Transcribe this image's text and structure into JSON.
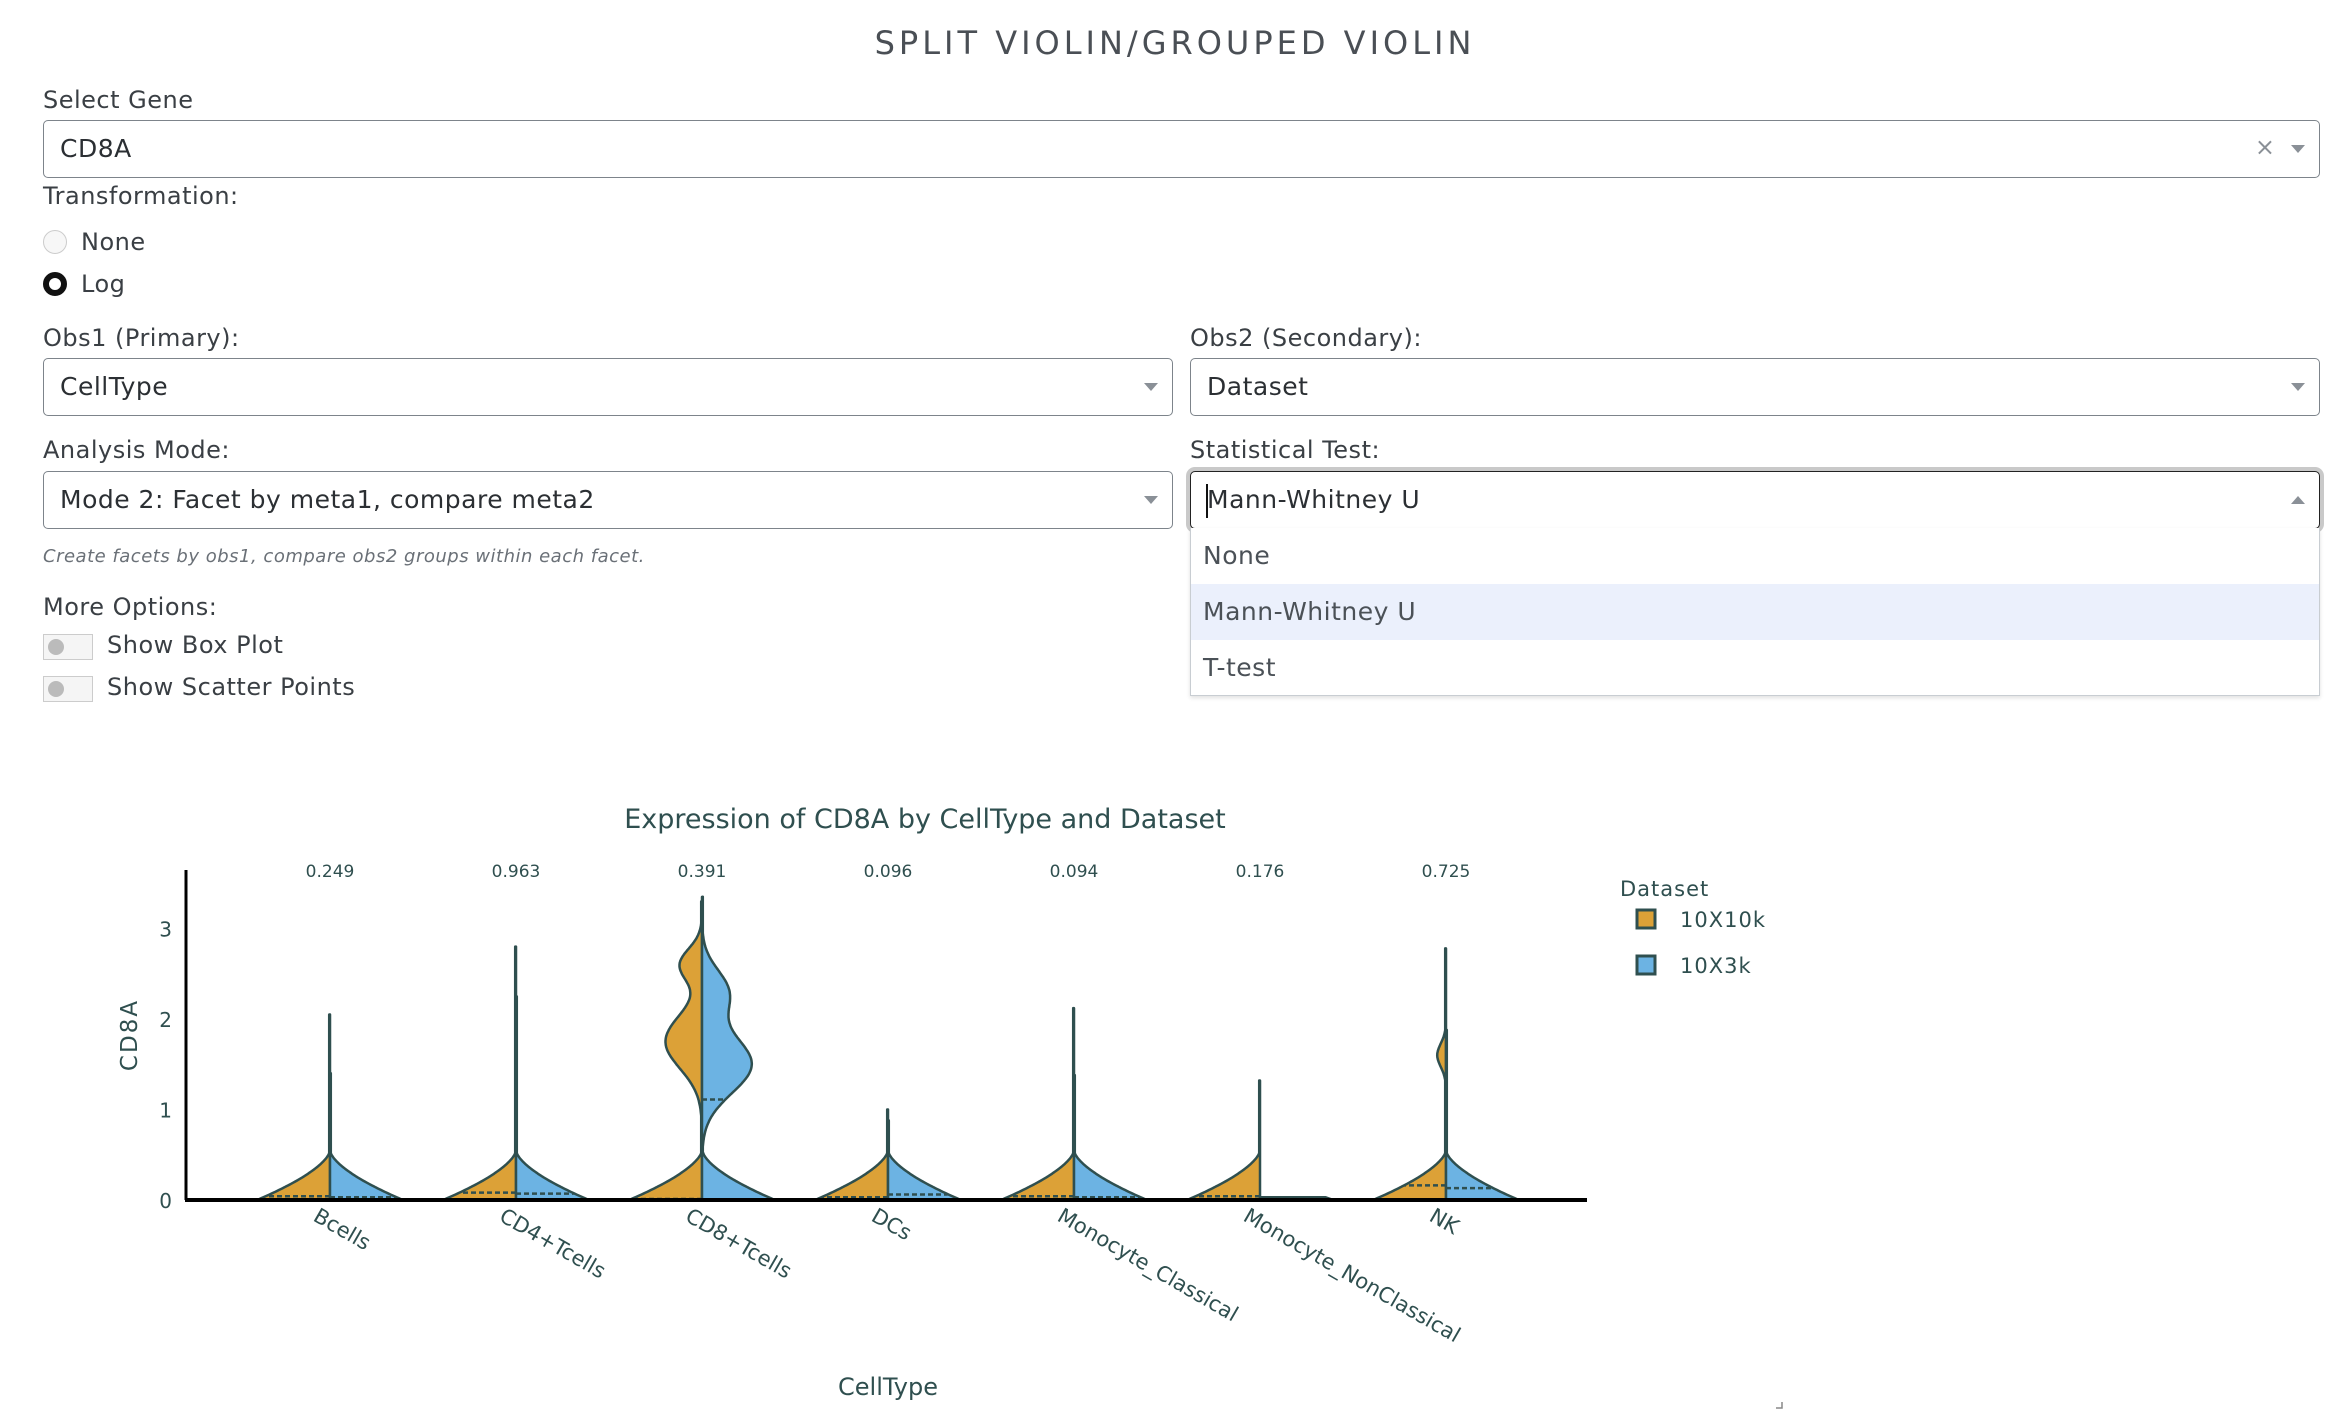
{
  "page_title": "SPLIT VIOLIN/GROUPED VIOLIN",
  "gene": {
    "label": "Select Gene",
    "value": "CD8A",
    "clear_icon": "×"
  },
  "transformation": {
    "label": "Transformation:",
    "options": [
      {
        "label": "None",
        "selected": false
      },
      {
        "label": "Log",
        "selected": true
      }
    ]
  },
  "obs1": {
    "label": "Obs1 (Primary):",
    "value": "CellType"
  },
  "obs2": {
    "label": "Obs2 (Secondary):",
    "value": "Dataset"
  },
  "analysis_mode": {
    "label": "Analysis Mode:",
    "value": "Mode 2: Facet by meta1, compare meta2",
    "help": "Create facets by obs1, compare obs2 groups within each facet."
  },
  "stat_test": {
    "label": "Statistical Test:",
    "value": "Mann-Whitney U",
    "open": true,
    "options": [
      "None",
      "Mann-Whitney U",
      "T-test"
    ],
    "highlighted": "Mann-Whitney U"
  },
  "more_options": {
    "label": "More Options:",
    "toggles": [
      {
        "label": "Show Box Plot",
        "on": false
      },
      {
        "label": "Show Scatter Points",
        "on": false
      }
    ]
  },
  "colors": {
    "10X10k": "#dca137",
    "10X3k": "#6cb3e3",
    "outline": "#2f4f4f"
  },
  "chart_data": {
    "type": "violin",
    "title": "Expression of CD8A by CellType and Dataset",
    "xlabel": "CellType",
    "ylabel": "CD8A",
    "ylim": [
      0,
      3.6
    ],
    "yticks": [
      "0",
      "1",
      "2",
      "3"
    ],
    "grid": false,
    "legend": {
      "title": "Dataset",
      "placement": "right",
      "entries": [
        "10X10k",
        "10X3k"
      ]
    },
    "categories": [
      "Bcells",
      "CD4+Tcells",
      "CD8+Tcells",
      "DCs",
      "Monocyte_Classical",
      "Monocyte_NonClassical",
      "NK"
    ],
    "p_values": [
      "0.249",
      "0.963",
      "0.391",
      "0.096",
      "0.094",
      "0.176",
      "0.725"
    ],
    "series": [
      {
        "name": "10X10k",
        "side": "negative",
        "max": [
          2.05,
          2.8,
          3.3,
          1.0,
          2.12,
          1.32,
          2.78
        ],
        "median": [
          0.03,
          0.07,
          0.0,
          0.02,
          0.03,
          0.03,
          0.15
        ]
      },
      {
        "name": "10X3k",
        "side": "positive",
        "max": [
          1.4,
          2.25,
          3.35,
          0.88,
          1.38,
          0.03,
          1.88
        ],
        "median": [
          0.02,
          0.06,
          1.1,
          0.05,
          0.02,
          0.0,
          0.12
        ]
      }
    ]
  }
}
